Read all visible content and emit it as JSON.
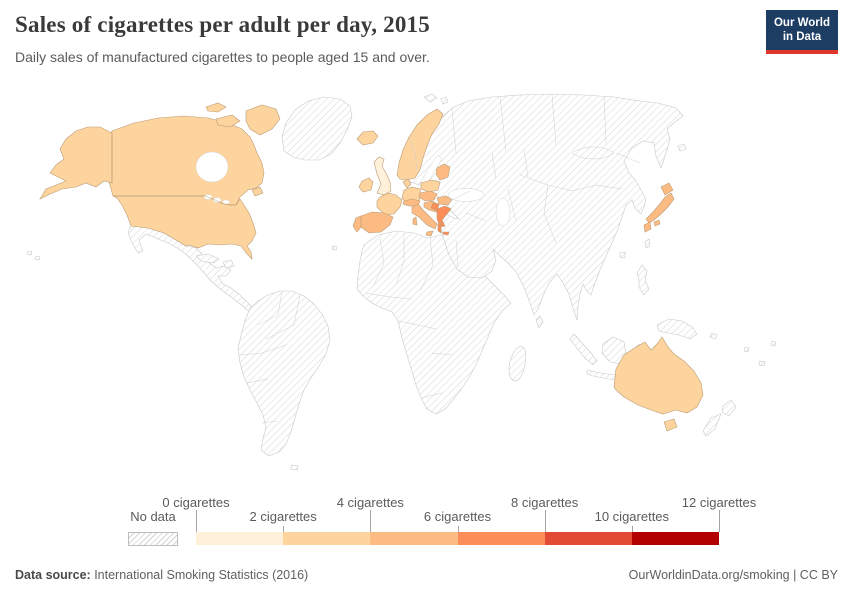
{
  "header": {
    "title": "Sales of cigarettes per adult per day, 2015",
    "subtitle": "Daily sales of manufactured cigarettes to people aged 15 and over."
  },
  "logo": {
    "line1": "Our World",
    "line2": "in Data",
    "bg": "#1d3d63",
    "accent": "#e0362c"
  },
  "legend": {
    "no_data_label": "No data",
    "tick_labels": [
      "0 cigarettes",
      "2 cigarettes",
      "4 cigarettes",
      "6 cigarettes",
      "8 cigarettes",
      "10 cigarettes",
      "12 cigarettes"
    ],
    "colors": [
      "#fef0d9",
      "#fdd49e",
      "#fdbb84",
      "#fc8d59",
      "#e34a33",
      "#b30000"
    ]
  },
  "footer": {
    "source_label": "Data source:",
    "source_text": " International Smoking Statistics (2016)",
    "credit": "OurWorldinData.org/smoking | CC BY"
  },
  "map": {
    "no_data_fill": "hatched",
    "region_fills": {
      "canada": "#fdd49e",
      "usa": "#fdd49e",
      "iceland": "#fdd49e",
      "united_kingdom": "#fef0d9",
      "ireland": "#fdd49e",
      "norway_sweden": "#fdd49e",
      "denmark": "#fdd49e",
      "germany": "#fdd49e",
      "france": "#fdd49e",
      "poland": "#fdd49e",
      "baltic_states": "#fdbb84",
      "spain": "#fdbb84",
      "portugal": "#fdbb84",
      "italy": "#fdbb84",
      "switzerland_austria": "#fdbb84",
      "czechia_hungary": "#fdbb84",
      "balkans": "#fdbb84",
      "serbia_bosnia": "#fc8d59",
      "bulgaria": "#fdbb84",
      "greece": "#fc8d59",
      "israel": "#fc8d59",
      "japan": "#fdbb84",
      "australia": "#fdd49e"
    }
  },
  "chart_data": {
    "type": "choropleth",
    "title": "Sales of cigarettes per adult per day, 2015",
    "subtitle": "Daily sales of manufactured cigarettes to people aged 15 and over.",
    "year": 2015,
    "unit": "cigarettes per adult per day",
    "legend": {
      "bucket_bounds": [
        0,
        2,
        4,
        6,
        8,
        10,
        12
      ],
      "bucket_colors": [
        "#fef0d9",
        "#fdd49e",
        "#fdbb84",
        "#fc8d59",
        "#e34a33",
        "#b30000"
      ],
      "no_data_style": "diagonal-hatch"
    },
    "values": [
      {
        "region": "United Kingdom",
        "bucket": "0-2 cigarettes"
      },
      {
        "region": "Canada",
        "bucket": "2-4 cigarettes"
      },
      {
        "region": "United States",
        "bucket": "2-4 cigarettes"
      },
      {
        "region": "Australia",
        "bucket": "2-4 cigarettes"
      },
      {
        "region": "France",
        "bucket": "2-4 cigarettes"
      },
      {
        "region": "Germany",
        "bucket": "2-4 cigarettes"
      },
      {
        "region": "Ireland",
        "bucket": "2-4 cigarettes"
      },
      {
        "region": "Iceland",
        "bucket": "2-4 cigarettes"
      },
      {
        "region": "Norway",
        "bucket": "2-4 cigarettes"
      },
      {
        "region": "Sweden",
        "bucket": "2-4 cigarettes"
      },
      {
        "region": "Denmark",
        "bucket": "2-4 cigarettes"
      },
      {
        "region": "Poland",
        "bucket": "2-4 cigarettes"
      },
      {
        "region": "Japan",
        "bucket": "4-6 cigarettes"
      },
      {
        "region": "Spain",
        "bucket": "4-6 cigarettes"
      },
      {
        "region": "Portugal",
        "bucket": "4-6 cigarettes"
      },
      {
        "region": "Italy",
        "bucket": "4-6 cigarettes"
      },
      {
        "region": "Switzerland",
        "bucket": "4-6 cigarettes"
      },
      {
        "region": "Austria",
        "bucket": "4-6 cigarettes"
      },
      {
        "region": "Czechia",
        "bucket": "4-6 cigarettes"
      },
      {
        "region": "Hungary",
        "bucket": "4-6 cigarettes"
      },
      {
        "region": "Baltic states",
        "bucket": "4-6 cigarettes"
      },
      {
        "region": "Bulgaria",
        "bucket": "4-6 cigarettes"
      },
      {
        "region": "Croatia",
        "bucket": "4-6 cigarettes"
      },
      {
        "region": "Greece",
        "bucket": "6-8 cigarettes"
      },
      {
        "region": "Serbia / Bosnia",
        "bucket": "6-8 cigarettes"
      },
      {
        "region": "Israel",
        "bucket": "6-8 cigarettes"
      }
    ],
    "no_data_regions": [
      "Greenland",
      "Mexico",
      "Central America",
      "South America",
      "Africa",
      "Russia",
      "Eastern Europe",
      "Finland",
      "Turkey",
      "Middle East",
      "China",
      "India",
      "Southeast Asia",
      "Indonesia",
      "Korea",
      "New Guinea",
      "New Zealand"
    ]
  }
}
